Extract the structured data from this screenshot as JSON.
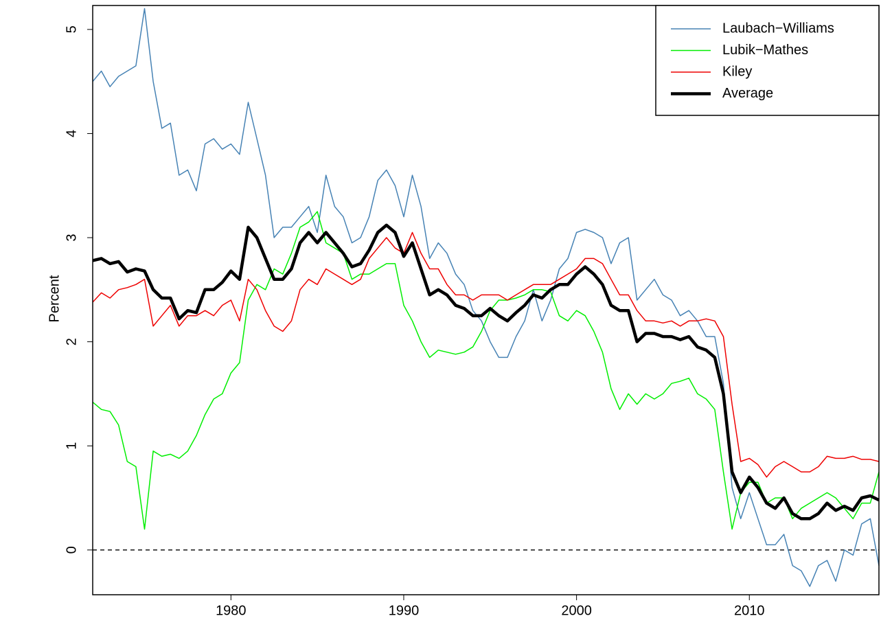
{
  "chart_data": {
    "type": "line",
    "ylabel": "Percent",
    "xlim": [
      1972.0,
      2017.5
    ],
    "ylim": [
      -0.43,
      5.23
    ],
    "xticks": [
      1980,
      1990,
      2000,
      2010
    ],
    "yticks": [
      0,
      1,
      2,
      3,
      4,
      5
    ],
    "reference_line": 0,
    "legend": "top-right",
    "x": [
      1972.0,
      1972.5,
      1973.0,
      1973.5,
      1974.0,
      1974.5,
      1975.0,
      1975.5,
      1976.0,
      1976.5,
      1977.0,
      1977.5,
      1978.0,
      1978.5,
      1979.0,
      1979.5,
      1980.0,
      1980.5,
      1981.0,
      1981.5,
      1982.0,
      1982.5,
      1983.0,
      1983.5,
      1984.0,
      1984.5,
      1985.0,
      1985.5,
      1986.0,
      1986.5,
      1987.0,
      1987.5,
      1988.0,
      1988.5,
      1989.0,
      1989.5,
      1990.0,
      1990.5,
      1991.0,
      1991.5,
      1992.0,
      1992.5,
      1993.0,
      1993.5,
      1994.0,
      1994.5,
      1995.0,
      1995.5,
      1996.0,
      1996.5,
      1997.0,
      1997.5,
      1998.0,
      1998.5,
      1999.0,
      1999.5,
      2000.0,
      2000.5,
      2001.0,
      2001.5,
      2002.0,
      2002.5,
      2003.0,
      2003.5,
      2004.0,
      2004.5,
      2005.0,
      2005.5,
      2006.0,
      2006.5,
      2007.0,
      2007.5,
      2008.0,
      2008.5,
      2009.0,
      2009.5,
      2010.0,
      2010.5,
      2011.0,
      2011.5,
      2012.0,
      2012.5,
      2013.0,
      2013.5,
      2014.0,
      2014.5,
      2015.0,
      2015.5,
      2016.0,
      2016.5,
      2017.0,
      2017.5
    ],
    "series": [
      {
        "name": "Laubach−Williams",
        "color": "#4682b4",
        "width": 1.5,
        "values": [
          4.5,
          4.6,
          4.45,
          4.55,
          4.6,
          4.65,
          5.2,
          4.5,
          4.05,
          4.1,
          3.6,
          3.65,
          3.45,
          3.9,
          3.95,
          3.85,
          3.9,
          3.8,
          4.3,
          3.95,
          3.6,
          3.0,
          3.1,
          3.1,
          3.2,
          3.3,
          3.05,
          3.6,
          3.3,
          3.2,
          2.95,
          3.0,
          3.2,
          3.55,
          3.65,
          3.5,
          3.2,
          3.6,
          3.3,
          2.8,
          2.95,
          2.85,
          2.65,
          2.55,
          2.3,
          2.2,
          2.0,
          1.85,
          1.85,
          2.05,
          2.2,
          2.5,
          2.2,
          2.4,
          2.7,
          2.8,
          3.05,
          3.08,
          3.05,
          3.0,
          2.75,
          2.95,
          3.0,
          2.4,
          2.5,
          2.6,
          2.45,
          2.4,
          2.25,
          2.3,
          2.2,
          2.05,
          2.05,
          1.6,
          0.6,
          0.3,
          0.55,
          0.3,
          0.05,
          0.05,
          0.15,
          -0.15,
          -0.2,
          -0.35,
          -0.15,
          -0.1,
          -0.3,
          0.0,
          -0.05,
          0.25,
          0.3,
          -0.15
        ]
      },
      {
        "name": "Lubik−Mathes",
        "color": "#00ee00",
        "width": 1.5,
        "values": [
          1.42,
          1.35,
          1.33,
          1.2,
          0.85,
          0.8,
          0.2,
          0.95,
          0.9,
          0.92,
          0.88,
          0.95,
          1.1,
          1.3,
          1.45,
          1.5,
          1.7,
          1.8,
          2.4,
          2.55,
          2.5,
          2.7,
          2.65,
          2.85,
          3.1,
          3.15,
          3.25,
          2.95,
          2.9,
          2.85,
          2.6,
          2.65,
          2.65,
          2.7,
          2.75,
          2.75,
          2.35,
          2.2,
          2.0,
          1.85,
          1.92,
          1.9,
          1.88,
          1.9,
          1.95,
          2.1,
          2.3,
          2.4,
          2.4,
          2.42,
          2.45,
          2.5,
          2.5,
          2.48,
          2.25,
          2.2,
          2.3,
          2.25,
          2.1,
          1.9,
          1.55,
          1.35,
          1.5,
          1.4,
          1.5,
          1.45,
          1.5,
          1.6,
          1.62,
          1.65,
          1.5,
          1.45,
          1.35,
          0.75,
          0.2,
          0.55,
          0.65,
          0.65,
          0.45,
          0.5,
          0.5,
          0.3,
          0.4,
          0.45,
          0.5,
          0.55,
          0.5,
          0.4,
          0.3,
          0.45,
          0.45,
          0.75
        ]
      },
      {
        "name": "Kiley",
        "color": "#ee0000",
        "width": 1.5,
        "values": [
          2.38,
          2.47,
          2.42,
          2.5,
          2.52,
          2.55,
          2.6,
          2.15,
          2.25,
          2.35,
          2.15,
          2.25,
          2.25,
          2.3,
          2.25,
          2.35,
          2.4,
          2.2,
          2.6,
          2.5,
          2.3,
          2.15,
          2.1,
          2.2,
          2.5,
          2.6,
          2.55,
          2.7,
          2.65,
          2.6,
          2.55,
          2.6,
          2.8,
          2.9,
          3.0,
          2.9,
          2.85,
          3.05,
          2.85,
          2.7,
          2.7,
          2.55,
          2.45,
          2.45,
          2.4,
          2.45,
          2.45,
          2.45,
          2.4,
          2.45,
          2.5,
          2.55,
          2.55,
          2.55,
          2.6,
          2.65,
          2.7,
          2.8,
          2.8,
          2.75,
          2.6,
          2.45,
          2.45,
          2.3,
          2.2,
          2.2,
          2.18,
          2.2,
          2.15,
          2.2,
          2.2,
          2.22,
          2.2,
          2.05,
          1.4,
          0.85,
          0.88,
          0.82,
          0.7,
          0.8,
          0.85,
          0.8,
          0.75,
          0.75,
          0.8,
          0.9,
          0.88,
          0.88,
          0.9,
          0.87,
          0.87,
          0.85
        ]
      },
      {
        "name": "Average",
        "color": "#000000",
        "width": 4.5,
        "values": [
          2.78,
          2.8,
          2.75,
          2.77,
          2.67,
          2.7,
          2.68,
          2.5,
          2.42,
          2.42,
          2.22,
          2.3,
          2.28,
          2.5,
          2.5,
          2.57,
          2.68,
          2.6,
          3.1,
          3.0,
          2.8,
          2.6,
          2.6,
          2.7,
          2.95,
          3.05,
          2.95,
          3.05,
          2.95,
          2.85,
          2.72,
          2.75,
          2.88,
          3.05,
          3.12,
          3.05,
          2.82,
          2.95,
          2.7,
          2.45,
          2.5,
          2.45,
          2.35,
          2.32,
          2.25,
          2.25,
          2.32,
          2.25,
          2.2,
          2.28,
          2.35,
          2.45,
          2.42,
          2.5,
          2.55,
          2.55,
          2.65,
          2.72,
          2.65,
          2.55,
          2.35,
          2.3,
          2.3,
          2.0,
          2.08,
          2.08,
          2.05,
          2.05,
          2.02,
          2.05,
          1.95,
          1.92,
          1.85,
          1.5,
          0.75,
          0.55,
          0.7,
          0.6,
          0.45,
          0.4,
          0.5,
          0.35,
          0.3,
          0.3,
          0.35,
          0.45,
          0.38,
          0.42,
          0.38,
          0.5,
          0.52,
          0.48
        ]
      }
    ]
  }
}
